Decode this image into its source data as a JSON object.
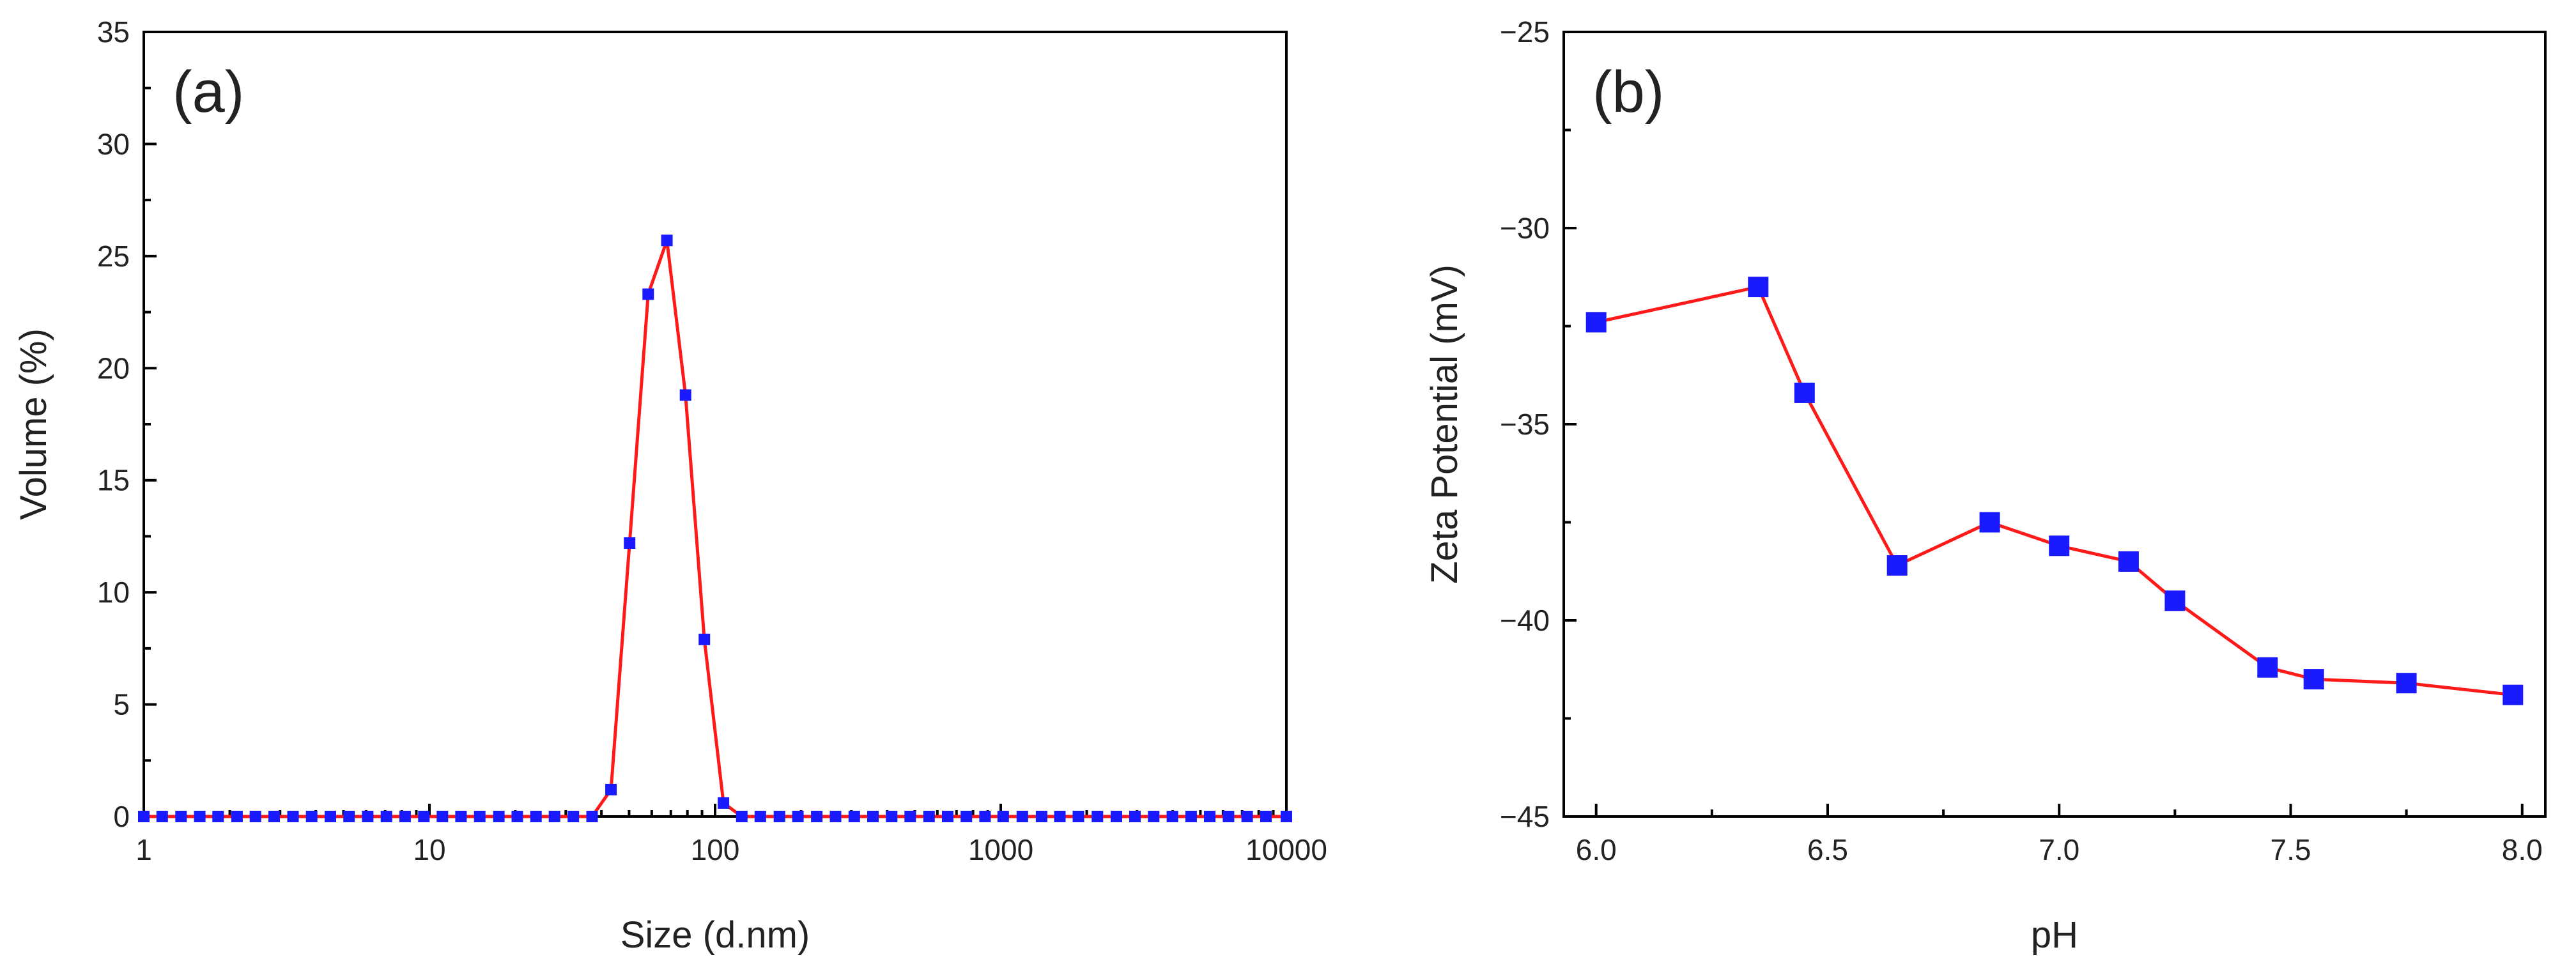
{
  "colors": {
    "line": "#ff1a1a",
    "marker": "#1a1aff"
  },
  "chart_data": [
    {
      "type": "line",
      "panel_label": "(a)",
      "xlabel": "Size (d.nm)",
      "ylabel": "Volume (%)",
      "xscale": "log",
      "xlim": [
        1,
        10000
      ],
      "ylim": [
        0,
        35
      ],
      "xticks": [
        1,
        10,
        100,
        1000,
        10000
      ],
      "xtick_labels": [
        "1",
        "10",
        "100",
        "1000",
        "10000"
      ],
      "yticks": [
        0,
        5,
        10,
        15,
        20,
        25,
        30,
        35
      ],
      "ytick_labels": [
        "0",
        "5",
        "10",
        "15",
        "20",
        "25",
        "30",
        "35"
      ],
      "series": [
        {
          "name": "Volume",
          "x": [
            1.0,
            1.16,
            1.35,
            1.57,
            1.82,
            2.12,
            2.46,
            2.86,
            3.33,
            3.87,
            4.5,
            5.23,
            6.08,
            7.07,
            8.22,
            9.56,
            11.1,
            12.9,
            15.0,
            17.5,
            20.3,
            23.6,
            27.4,
            31.9,
            37.1,
            43.2,
            50.2,
            58.3,
            67.8,
            78.8,
            91.7,
            107,
            124,
            144,
            168,
            195,
            227,
            264,
            307,
            357,
            415,
            482,
            561,
            652,
            758,
            881,
            1020,
            1190,
            1390,
            1610,
            1870,
            2180,
            2540,
            2950,
            3430,
            3990,
            4640,
            5390,
            6270,
            7290,
            8480,
            10000
          ],
          "y": [
            0,
            0,
            0,
            0,
            0,
            0,
            0,
            0,
            0,
            0,
            0,
            0,
            0,
            0,
            0,
            0,
            0,
            0,
            0,
            0,
            0,
            0,
            0,
            0,
            0,
            1.2,
            12.2,
            23.3,
            25.7,
            18.8,
            7.9,
            0.6,
            0,
            0,
            0,
            0,
            0,
            0,
            0,
            0,
            0,
            0,
            0,
            0,
            0,
            0,
            0,
            0,
            0,
            0,
            0,
            0,
            0,
            0,
            0,
            0,
            0,
            0,
            0,
            0,
            0,
            0
          ]
        }
      ]
    },
    {
      "type": "line",
      "panel_label": "(b)",
      "xlabel": "pH",
      "ylabel": "Zeta Potential (mV)",
      "xlim": [
        5.93,
        8.05
      ],
      "ylim": [
        -45,
        -25
      ],
      "xticks": [
        6.0,
        6.5,
        7.0,
        7.5,
        8.0
      ],
      "xtick_labels": [
        "6.0",
        "6.5",
        "7.0",
        "7.5",
        "8.0"
      ],
      "yticks": [
        -45,
        -40,
        -35,
        -30,
        -25
      ],
      "ytick_labels": [
        "−45",
        "−40",
        "−35",
        "−30",
        "−25"
      ],
      "series": [
        {
          "name": "Zeta Potential",
          "x": [
            6.0,
            6.35,
            6.45,
            6.65,
            6.85,
            7.0,
            7.15,
            7.25,
            7.45,
            7.55,
            7.75,
            7.98
          ],
          "y": [
            -32.4,
            -31.5,
            -34.2,
            -38.6,
            -37.5,
            -38.1,
            -38.5,
            -39.5,
            -41.2,
            -41.5,
            -41.6,
            -41.9
          ]
        }
      ]
    }
  ]
}
